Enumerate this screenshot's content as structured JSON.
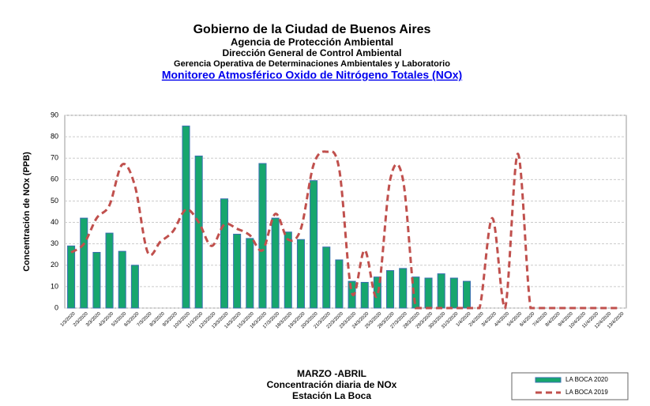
{
  "chart_data": {
    "type": "bar-line",
    "titles": [
      "Gobierno de la Ciudad de Buenos Aires",
      "Agencia de Protección Ambiental",
      "Dirección General de Control Ambiental",
      "Gerencia Operativa de  Determinaciones Ambientales y Laboratorio"
    ],
    "title_link": "Monitoreo Atmosférico  Oxido de Nitrógeno Totales (NOx)",
    "ylabel": "Concentración de NOx (PPB)",
    "xlabel_lines": [
      "MARZO -ABRIL",
      "Concentración diaria de NOx",
      "Estación La Boca"
    ],
    "categories": [
      "1/3/2020",
      "2/3/2020",
      "3/3/2020",
      "4/3/2020",
      "5/3/2020",
      "6/3/2020",
      "7/3/2020",
      "8/3/2020",
      "9/3/2020",
      "10/3/2020",
      "11/3/2020",
      "12/3/2020",
      "13/3/2020",
      "14/3/2020",
      "15/3/2020",
      "16/3/2020",
      "17/3/2020",
      "18/3/2020",
      "19/3/2020",
      "20/3/2020",
      "21/3/2020",
      "22/3/2020",
      "23/3/2020",
      "24/3/2020",
      "25/3/2020",
      "26/3/2020",
      "27/3/2020",
      "28/3/2020",
      "29/3/2020",
      "30/3/2020",
      "31/3/2020",
      "1/4/2020",
      "2/4/2020",
      "3/4/2020",
      "4/4/2020",
      "5/4/2020",
      "6/4/2020",
      "7/4/2020",
      "8/4/2020",
      "9/4/2020",
      "10/4/2020",
      "11/4/2020",
      "12/4/2020",
      "13/4/2020"
    ],
    "series": [
      {
        "name": "LA BOCA 2020",
        "kind": "bar",
        "color": "#17a66e",
        "edge": "#3a6fb0",
        "values": [
          29,
          42,
          26,
          35,
          26.5,
          20,
          null,
          null,
          null,
          85,
          71,
          null,
          51,
          34.5,
          32.5,
          67.5,
          42,
          35.5,
          32,
          59.5,
          28.5,
          22.5,
          12.5,
          12,
          14.5,
          17.5,
          18.5,
          14.5,
          14,
          16,
          14,
          12.5,
          null,
          null,
          null,
          null,
          null,
          null,
          null,
          null,
          null,
          null,
          null,
          null
        ]
      },
      {
        "name": "LA BOCA 2019",
        "kind": "line",
        "color": "#c0504d",
        "values": [
          26,
          30,
          42,
          48,
          67,
          57,
          26,
          31,
          36,
          46,
          40,
          29,
          39,
          37,
          34,
          27,
          44,
          32,
          37,
          67,
          73,
          65,
          7,
          27,
          6,
          60,
          60,
          0,
          0,
          0,
          0,
          0,
          0,
          42,
          0,
          72,
          0,
          0,
          0,
          0,
          0,
          0,
          0,
          0
        ]
      }
    ],
    "ylim": [
      0,
      90
    ],
    "yticks": [
      0,
      10,
      20,
      30,
      40,
      50,
      60,
      70,
      80,
      90
    ],
    "grid": true
  }
}
